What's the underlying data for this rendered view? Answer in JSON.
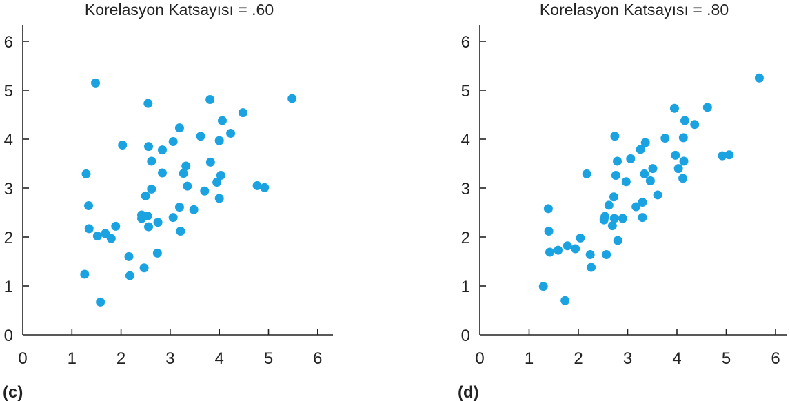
{
  "point_color": "#1aa3e0",
  "chart_data": [
    {
      "type": "scatter",
      "panel_label": "(c)",
      "title": "Korelasyon Katsayısı = .60",
      "xlabel": "",
      "ylabel": "",
      "xlim": [
        0,
        6.3
      ],
      "ylim": [
        0,
        6.3
      ],
      "xticks": [
        "0",
        "1",
        "2",
        "3",
        "4",
        "5",
        "6"
      ],
      "yticks": [
        "0",
        "1",
        "2",
        "3",
        "4",
        "5",
        "6"
      ],
      "grid": false,
      "points": [
        [
          1.29,
          3.29
        ],
        [
          1.34,
          2.64
        ],
        [
          1.35,
          2.17
        ],
        [
          1.26,
          1.24
        ],
        [
          1.48,
          5.15
        ],
        [
          1.52,
          2.02
        ],
        [
          1.68,
          2.07
        ],
        [
          1.8,
          1.97
        ],
        [
          1.58,
          0.67
        ],
        [
          1.89,
          2.22
        ],
        [
          2.03,
          3.88
        ],
        [
          2.16,
          1.6
        ],
        [
          2.18,
          1.21
        ],
        [
          2.42,
          2.45
        ],
        [
          2.42,
          2.38
        ],
        [
          2.47,
          1.37
        ],
        [
          2.5,
          2.84
        ],
        [
          2.54,
          2.43
        ],
        [
          2.55,
          4.73
        ],
        [
          2.56,
          3.85
        ],
        [
          2.56,
          2.21
        ],
        [
          2.62,
          3.55
        ],
        [
          2.62,
          2.98
        ],
        [
          2.74,
          1.67
        ],
        [
          2.75,
          2.3
        ],
        [
          2.84,
          3.78
        ],
        [
          2.84,
          3.31
        ],
        [
          3.06,
          3.95
        ],
        [
          3.06,
          2.4
        ],
        [
          3.19,
          4.23
        ],
        [
          3.19,
          2.61
        ],
        [
          3.21,
          2.12
        ],
        [
          3.27,
          3.3
        ],
        [
          3.32,
          3.45
        ],
        [
          3.35,
          3.04
        ],
        [
          3.48,
          2.56
        ],
        [
          3.62,
          4.06
        ],
        [
          3.7,
          2.94
        ],
        [
          3.81,
          4.81
        ],
        [
          3.82,
          3.53
        ],
        [
          3.95,
          3.12
        ],
        [
          4.0,
          3.97
        ],
        [
          4.0,
          2.79
        ],
        [
          4.03,
          3.26
        ],
        [
          4.06,
          4.38
        ],
        [
          4.23,
          4.12
        ],
        [
          4.48,
          4.54
        ],
        [
          4.77,
          3.05
        ],
        [
          4.92,
          3.01
        ],
        [
          5.48,
          4.83
        ]
      ]
    },
    {
      "type": "scatter",
      "panel_label": "(d)",
      "title": "Korelasyon Katsayısı = .80",
      "xlabel": "",
      "ylabel": "",
      "xlim": [
        0,
        6.3
      ],
      "ylim": [
        0,
        6.3
      ],
      "xticks": [
        "0",
        "1",
        "2",
        "3",
        "4",
        "5",
        "6"
      ],
      "yticks": [
        "0",
        "1",
        "2",
        "3",
        "4",
        "5",
        "6"
      ],
      "grid": false,
      "points": [
        [
          1.29,
          0.99
        ],
        [
          1.39,
          2.58
        ],
        [
          1.4,
          2.12
        ],
        [
          1.42,
          1.69
        ],
        [
          1.59,
          1.73
        ],
        [
          1.73,
          0.7
        ],
        [
          1.78,
          1.82
        ],
        [
          1.94,
          1.76
        ],
        [
          2.04,
          1.98
        ],
        [
          2.17,
          3.29
        ],
        [
          2.24,
          1.64
        ],
        [
          2.26,
          1.38
        ],
        [
          2.52,
          2.35
        ],
        [
          2.54,
          2.42
        ],
        [
          2.57,
          1.64
        ],
        [
          2.62,
          2.65
        ],
        [
          2.69,
          2.23
        ],
        [
          2.72,
          2.82
        ],
        [
          2.73,
          2.38
        ],
        [
          2.74,
          4.06
        ],
        [
          2.76,
          3.26
        ],
        [
          2.79,
          3.55
        ],
        [
          2.8,
          1.93
        ],
        [
          2.9,
          2.38
        ],
        [
          2.97,
          3.13
        ],
        [
          3.06,
          3.6
        ],
        [
          3.17,
          2.62
        ],
        [
          3.26,
          3.79
        ],
        [
          3.3,
          2.71
        ],
        [
          3.3,
          2.4
        ],
        [
          3.34,
          3.29
        ],
        [
          3.36,
          3.93
        ],
        [
          3.46,
          3.15
        ],
        [
          3.51,
          3.4
        ],
        [
          3.61,
          2.86
        ],
        [
          3.76,
          4.02
        ],
        [
          3.95,
          4.63
        ],
        [
          3.97,
          3.67
        ],
        [
          4.03,
          3.4
        ],
        [
          4.12,
          3.2
        ],
        [
          4.13,
          4.03
        ],
        [
          4.14,
          3.55
        ],
        [
          4.16,
          4.38
        ],
        [
          4.36,
          4.3
        ],
        [
          4.62,
          4.65
        ],
        [
          4.92,
          3.66
        ],
        [
          5.06,
          3.68
        ],
        [
          5.67,
          5.25
        ]
      ]
    }
  ]
}
